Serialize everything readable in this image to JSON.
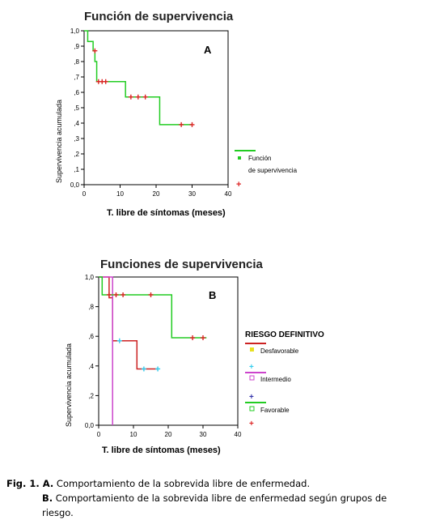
{
  "chart_data": [
    {
      "type": "line",
      "panel_label": "A",
      "title": "Función de supervivencia",
      "xlabel": "T. libre de síntomas (meses)",
      "ylabel": "Supervivencia acumulada",
      "xlim": [
        0,
        40
      ],
      "ylim": [
        0,
        1
      ],
      "x_ticks": [
        "0",
        "10",
        "20",
        "30",
        "40"
      ],
      "y_ticks": [
        "0,0",
        ",1",
        ",2",
        ",3",
        ",4",
        ",5",
        ",6",
        ",7",
        ",8",
        ",9",
        "1,0"
      ],
      "legend": [
        "Función",
        "de supervivencia"
      ],
      "legend_colors": [
        "#22cc22",
        "#dd2222"
      ],
      "series": [
        {
          "name": "Función de supervivencia",
          "color": "#22cc22",
          "steps": [
            [
              0,
              1.0
            ],
            [
              1,
              0.93
            ],
            [
              2.5,
              0.87
            ],
            [
              3,
              0.8
            ],
            [
              3.5,
              0.67
            ],
            [
              11,
              0.67
            ],
            [
              11.5,
              0.57
            ],
            [
              21,
              0.57
            ],
            [
              21,
              0.39
            ],
            [
              30,
              0.39
            ]
          ],
          "censored": [
            [
              3,
              0.87
            ],
            [
              4,
              0.67
            ],
            [
              5,
              0.67
            ],
            [
              6,
              0.67
            ],
            [
              13,
              0.57
            ],
            [
              15,
              0.57
            ],
            [
              17,
              0.57
            ],
            [
              27,
              0.39
            ],
            [
              30,
              0.39
            ]
          ]
        }
      ]
    },
    {
      "type": "line",
      "panel_label": "B",
      "title": "Funciones de supervivencia",
      "xlabel": "T. libre de síntomas (meses)",
      "ylabel": "Supervivencia acumulada",
      "xlim": [
        0,
        40
      ],
      "ylim": [
        0,
        1
      ],
      "x_ticks": [
        "0",
        "10",
        "20",
        "30",
        "40"
      ],
      "y_ticks": [
        "0,0",
        ",2",
        ",4",
        ",6",
        ",8",
        "1,0"
      ],
      "legend_title": "RIESGO DEFINITIVO",
      "series": [
        {
          "name": "Desfavorable",
          "color": "#cc2222",
          "censor_color": "#33ccee",
          "steps": [
            [
              0,
              1.0
            ],
            [
              3,
              0.86
            ],
            [
              4,
              0.71
            ],
            [
              4,
              0.57
            ],
            [
              11,
              0.57
            ],
            [
              11,
              0.38
            ],
            [
              17,
              0.38
            ]
          ],
          "censored": [
            [
              6,
              0.57
            ],
            [
              13,
              0.38
            ],
            [
              17,
              0.38
            ]
          ]
        },
        {
          "name": "Intermedio",
          "color": "#cc44cc",
          "censor_color": "#3333aa",
          "steps": [
            [
              0,
              1.0
            ],
            [
              4,
              1.0
            ],
            [
              4,
              0.0
            ]
          ],
          "censored": []
        },
        {
          "name": "Favorable",
          "color": "#22cc22",
          "censor_color": "#dd2222",
          "steps": [
            [
              0,
              1.0
            ],
            [
              1,
              0.88
            ],
            [
              20,
              0.88
            ],
            [
              21,
              0.59
            ],
            [
              31,
              0.59
            ]
          ],
          "censored": [
            [
              3,
              0.88
            ],
            [
              5,
              0.88
            ],
            [
              7,
              0.88
            ],
            [
              15,
              0.88
            ],
            [
              27,
              0.59
            ],
            [
              30,
              0.59
            ]
          ]
        }
      ]
    }
  ],
  "caption": {
    "fig_label": "Fig. 1. A.",
    "line1": " Comportamiento de la sobrevida libre de enfermedad.",
    "label_b": "B.",
    "line2": " Comportamiento de la sobrevida libre de enfermedad según grupos de riesgo."
  }
}
